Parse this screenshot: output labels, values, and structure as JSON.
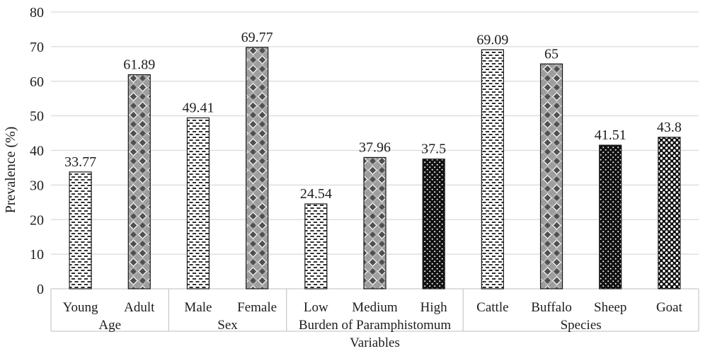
{
  "chart_data": {
    "type": "bar",
    "title": "",
    "xlabel": "Variables",
    "ylabel": "Prevalence (%)",
    "ylim": [
      0,
      80
    ],
    "yticks": [
      0,
      10,
      20,
      30,
      40,
      50,
      60,
      70,
      80
    ],
    "grid": true,
    "legend": "none",
    "categories": [
      "Young",
      "Adult",
      "Male",
      "Female",
      "Low",
      "Medium",
      "High",
      "Cattle",
      "Buffalo",
      "Sheep",
      "Goat"
    ],
    "values": [
      33.77,
      61.89,
      49.41,
      69.77,
      24.54,
      37.96,
      37.5,
      69.09,
      65,
      41.51,
      43.8
    ],
    "groups": [
      {
        "label": "Age",
        "bars": [
          {
            "label": "Young",
            "value": 33.77,
            "display": "33.77",
            "pattern": "dashed"
          },
          {
            "label": "Adult",
            "value": 61.89,
            "display": "61.89",
            "pattern": "diamond-hatch"
          }
        ]
      },
      {
        "label": "Sex",
        "bars": [
          {
            "label": "Male",
            "value": 49.41,
            "display": "49.41",
            "pattern": "dashed"
          },
          {
            "label": "Female",
            "value": 69.77,
            "display": "69.77",
            "pattern": "diamond-hatch"
          }
        ]
      },
      {
        "label": "Burden of Paramphistomum",
        "bars": [
          {
            "label": "Low",
            "value": 24.54,
            "display": "24.54",
            "pattern": "dashed"
          },
          {
            "label": "Medium",
            "value": 37.96,
            "display": "37.96",
            "pattern": "diamond-hatch"
          },
          {
            "label": "High",
            "value": 37.5,
            "display": "37.5",
            "pattern": "black-sparse-dots"
          }
        ]
      },
      {
        "label": "Species",
        "bars": [
          {
            "label": "Cattle",
            "value": 69.09,
            "display": "69.09",
            "pattern": "dashed"
          },
          {
            "label": "Buffalo",
            "value": 65,
            "display": "65",
            "pattern": "diamond-hatch"
          },
          {
            "label": "Sheep",
            "value": 41.51,
            "display": "41.51",
            "pattern": "black-sparse-dots"
          },
          {
            "label": "Goat",
            "value": 43.8,
            "display": "43.8",
            "pattern": "black-white-circles"
          }
        ]
      }
    ]
  },
  "colors": {
    "background": "#ffffff",
    "text": "#1d1d1d",
    "gridline": "#d9d9d9",
    "axis_box": "#cbcbcb",
    "bar_outline": "#1a1a1a"
  }
}
